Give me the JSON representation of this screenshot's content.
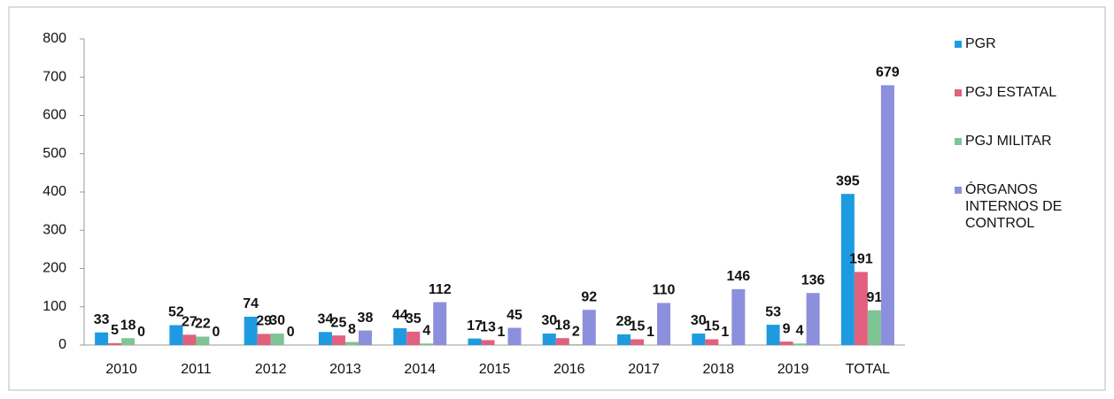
{
  "chart_data": {
    "type": "bar",
    "categories": [
      "2010",
      "2011",
      "2012",
      "2013",
      "2014",
      "2015",
      "2016",
      "2017",
      "2018",
      "2019",
      "TOTAL"
    ],
    "series": [
      {
        "name": "PGR",
        "color": "#1e9be0",
        "values": [
          33,
          52,
          74,
          34,
          44,
          17,
          30,
          28,
          30,
          53,
          395
        ]
      },
      {
        "name": "PGJ ESTATAL",
        "color": "#e0607e",
        "values": [
          5,
          27,
          29,
          25,
          35,
          13,
          18,
          15,
          15,
          9,
          191
        ]
      },
      {
        "name": "PGJ MILITAR",
        "color": "#7fc494",
        "values": [
          18,
          22,
          30,
          8,
          4,
          1,
          2,
          1,
          1,
          4,
          91
        ]
      },
      {
        "name": "ÓRGANOS INTERNOS DE CONTROL",
        "color": "#8c8fdc",
        "values": [
          0,
          0,
          0,
          38,
          112,
          45,
          92,
          110,
          146,
          136,
          679
        ]
      }
    ],
    "ylim": [
      0,
      800
    ],
    "yticks": [
      0,
      100,
      200,
      300,
      400,
      500,
      600,
      700,
      800
    ],
    "grid": false,
    "legend": "right"
  }
}
